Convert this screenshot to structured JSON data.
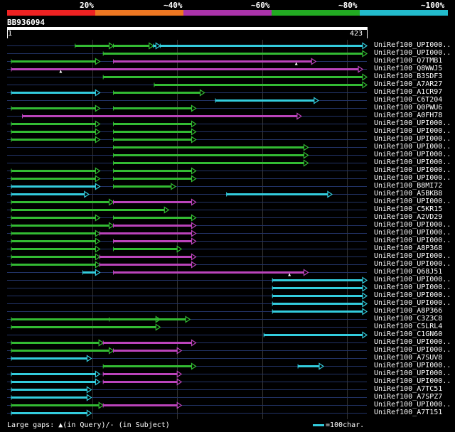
{
  "query": {
    "id": "BB936094",
    "start": "1",
    "end": "423",
    "length": 423
  },
  "scale": {
    "labels": [
      "20%",
      "~40%",
      "~60%",
      "~80%",
      "~100%"
    ],
    "segments": [
      {
        "name": "red",
        "color": "#ee2222"
      },
      {
        "name": "orange",
        "color": "#ee7722"
      },
      {
        "name": "purple",
        "color": "#aa33aa"
      },
      {
        "name": "green",
        "color": "#22aa22"
      },
      {
        "name": "cyan",
        "color": "#22bbcc"
      }
    ]
  },
  "colors": {
    "cyan": "#33ccdd",
    "green": "#33bb33",
    "magenta": "#bb44bb",
    "line": "#223366",
    "grid": "#333333"
  },
  "legend": {
    "gaps_prefix": "Large gaps: ",
    "gaps_query": "(in Query)/",
    "gaps_subject": " (in Subject)",
    "scale_text": "=100char."
  },
  "hits": [
    {
      "label": "UniRef100_UPI000..",
      "segs": [
        [
          80,
          125,
          "green"
        ],
        [
          125,
          172,
          "green"
        ],
        [
          172,
          180,
          "cyan"
        ],
        [
          180,
          423,
          "cyan"
        ]
      ]
    },
    {
      "label": "UniRef100_UPI000..",
      "segs": [
        [
          113,
          423,
          "green"
        ]
      ]
    },
    {
      "label": "UniRef100_Q7TMB1",
      "segs": [
        [
          5,
          109,
          "green"
        ],
        [
          125,
          363,
          "magenta"
        ]
      ],
      "gaps": [
        340
      ]
    },
    {
      "label": "UniRef100_Q8WWJ5",
      "segs": [
        [
          5,
          418,
          "magenta"
        ]
      ],
      "gaps": [
        63
      ]
    },
    {
      "label": "UniRef100_B3SDF3",
      "segs": [
        [
          113,
          423,
          "green"
        ]
      ]
    },
    {
      "label": "UniRef100_A7AR27",
      "segs": [
        [
          173,
          423,
          "green"
        ]
      ]
    },
    {
      "label": "UniRef100_A1CR97",
      "segs": [
        [
          5,
          109,
          "cyan"
        ],
        [
          125,
          232,
          "green"
        ]
      ]
    },
    {
      "label": "UniRef100_C6T204",
      "segs": [
        [
          245,
          366,
          "cyan"
        ]
      ]
    },
    {
      "label": "UniRef100_Q0PWU6",
      "segs": [
        [
          5,
          109,
          "green"
        ],
        [
          125,
          222,
          "green"
        ]
      ]
    },
    {
      "label": "UniRef100_A0FH78",
      "segs": [
        [
          18,
          346,
          "magenta"
        ]
      ]
    },
    {
      "label": "UniRef100_UPI000..",
      "segs": [
        [
          5,
          109,
          "green"
        ],
        [
          125,
          222,
          "green"
        ]
      ]
    },
    {
      "label": "UniRef100_UPI000..",
      "segs": [
        [
          5,
          109,
          "green"
        ],
        [
          125,
          222,
          "green"
        ]
      ]
    },
    {
      "label": "UniRef100_UPI000..",
      "segs": [
        [
          5,
          109,
          "green"
        ],
        [
          125,
          222,
          "green"
        ]
      ]
    },
    {
      "label": "UniRef100_UPI000..",
      "segs": [
        [
          125,
          354,
          "green"
        ]
      ]
    },
    {
      "label": "UniRef100_UPI000..",
      "segs": [
        [
          125,
          354,
          "green"
        ]
      ]
    },
    {
      "label": "UniRef100_UPI000..",
      "segs": [
        [
          125,
          354,
          "green"
        ]
      ]
    },
    {
      "label": "UniRef100_UPI000..",
      "segs": [
        [
          5,
          109,
          "green"
        ],
        [
          125,
          222,
          "green"
        ]
      ]
    },
    {
      "label": "UniRef100_UPI000..",
      "segs": [
        [
          5,
          109,
          "green"
        ],
        [
          125,
          222,
          "green"
        ]
      ]
    },
    {
      "label": "UniRef100_B8MI72",
      "segs": [
        [
          5,
          109,
          "cyan"
        ],
        [
          125,
          198,
          "green"
        ]
      ]
    },
    {
      "label": "UniRef100_A5BKB8",
      "segs": [
        [
          5,
          96,
          "cyan"
        ],
        [
          258,
          382,
          "cyan"
        ]
      ]
    },
    {
      "label": "UniRef100_UPI000..",
      "segs": [
        [
          5,
          125,
          "green"
        ],
        [
          125,
          222,
          "magenta"
        ]
      ]
    },
    {
      "label": "UniRef100_C5KR15",
      "segs": [
        [
          5,
          190,
          "green"
        ]
      ]
    },
    {
      "label": "UniRef100_A2VD29",
      "segs": [
        [
          5,
          109,
          "green"
        ],
        [
          125,
          222,
          "green"
        ]
      ]
    },
    {
      "label": "UniRef100_UPI000..",
      "segs": [
        [
          5,
          125,
          "green"
        ],
        [
          125,
          222,
          "magenta"
        ]
      ]
    },
    {
      "label": "UniRef100_UPI000..",
      "segs": [
        [
          5,
          109,
          "green"
        ],
        [
          109,
          222,
          "magenta"
        ]
      ]
    },
    {
      "label": "UniRef100_UPI000..",
      "segs": [
        [
          5,
          109,
          "green"
        ],
        [
          125,
          222,
          "magenta"
        ]
      ]
    },
    {
      "label": "UniRef100_A8P368",
      "segs": [
        [
          5,
          109,
          "green"
        ],
        [
          125,
          205,
          "green"
        ]
      ]
    },
    {
      "label": "UniRef100_UPI000..",
      "segs": [
        [
          5,
          109,
          "green"
        ],
        [
          109,
          222,
          "magenta"
        ]
      ]
    },
    {
      "label": "UniRef100_UPI000..",
      "segs": [
        [
          5,
          109,
          "green"
        ],
        [
          109,
          222,
          "magenta"
        ]
      ]
    },
    {
      "label": "UniRef100_Q68J51",
      "segs": [
        [
          89,
          109,
          "cyan"
        ],
        [
          125,
          354,
          "magenta"
        ]
      ],
      "gaps": [
        332
      ]
    },
    {
      "label": "UniRef100_UPI000..",
      "segs": [
        [
          312,
          423,
          "cyan"
        ]
      ]
    },
    {
      "label": "UniRef100_UPI000..",
      "segs": [
        [
          312,
          423,
          "cyan"
        ]
      ]
    },
    {
      "label": "UniRef100_UPI000..",
      "segs": [
        [
          312,
          423,
          "cyan"
        ]
      ]
    },
    {
      "label": "UniRef100_UPI000..",
      "segs": [
        [
          312,
          423,
          "cyan"
        ]
      ]
    },
    {
      "label": "UniRef100_A8P366",
      "segs": [
        [
          312,
          423,
          "cyan"
        ]
      ]
    },
    {
      "label": "UniRef100_C3Z3C8",
      "segs": [
        [
          5,
          180,
          "green"
        ],
        [
          120,
          215,
          "green"
        ]
      ]
    },
    {
      "label": "UniRef100_C5LRL4",
      "segs": [
        [
          5,
          180,
          "green"
        ]
      ]
    },
    {
      "label": "UniRef100_C1GN60",
      "segs": [
        [
          302,
          423,
          "cyan"
        ]
      ]
    },
    {
      "label": "UniRef100_UPI000..",
      "segs": [
        [
          5,
          113,
          "green"
        ],
        [
          113,
          222,
          "magenta"
        ]
      ]
    },
    {
      "label": "UniRef100_UPI000..",
      "segs": [
        [
          5,
          125,
          "green"
        ],
        [
          125,
          205,
          "magenta"
        ]
      ]
    },
    {
      "label": "UniRef100_A7SUV8",
      "segs": [
        [
          5,
          99,
          "cyan"
        ]
      ]
    },
    {
      "label": "UniRef100_UPI000..",
      "segs": [
        [
          113,
          222,
          "green"
        ],
        [
          342,
          372,
          "cyan"
        ]
      ]
    },
    {
      "label": "UniRef100_UPI000..",
      "segs": [
        [
          5,
          109,
          "cyan"
        ],
        [
          113,
          205,
          "magenta"
        ]
      ]
    },
    {
      "label": "UniRef100_UPI000..",
      "segs": [
        [
          5,
          109,
          "cyan"
        ],
        [
          113,
          205,
          "magenta"
        ]
      ]
    },
    {
      "label": "UniRef100_A7TC51",
      "segs": [
        [
          5,
          99,
          "cyan"
        ]
      ]
    },
    {
      "label": "UniRef100_A7SPZ7",
      "segs": [
        [
          5,
          99,
          "cyan"
        ]
      ]
    },
    {
      "label": "UniRef100_UPI000..",
      "segs": [
        [
          5,
          113,
          "green"
        ],
        [
          113,
          205,
          "magenta"
        ]
      ]
    },
    {
      "label": "UniRef100_A7T151",
      "segs": [
        [
          5,
          99,
          "cyan"
        ]
      ]
    }
  ]
}
